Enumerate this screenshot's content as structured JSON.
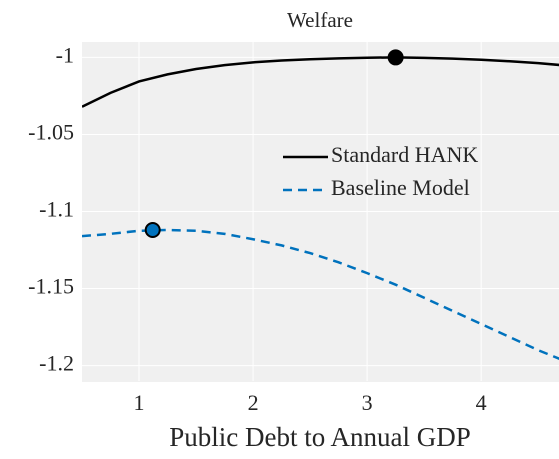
{
  "chart_data": {
    "type": "line",
    "title": "Welfare",
    "x_label": "Public Debt to Annual GDP",
    "x": [
      0.5,
      0.75,
      1,
      1.25,
      1.5,
      1.75,
      2,
      2.25,
      2.5,
      2.75,
      3,
      3.25,
      3.5,
      3.75,
      4,
      4.25,
      4.5,
      4.7
    ],
    "series": [
      {
        "name": "Standard HANK",
        "color": "#000000",
        "dash": "solid",
        "values": [
          -1.032,
          -1.023,
          -1.0156,
          -1.011,
          -1.0075,
          -1.005,
          -1.0032,
          -1.002,
          -1.0012,
          -1.0006,
          -1.0002,
          -1.0,
          -1.0003,
          -1.0008,
          -1.0015,
          -1.0025,
          -1.0037,
          -1.005
        ],
        "optimum": {
          "x": 3.25,
          "y": -1.0
        }
      },
      {
        "name": "Baseline Model",
        "color": "#0072BD",
        "dash": "dashed",
        "values": [
          -1.116,
          -1.1145,
          -1.1125,
          -1.112,
          -1.1125,
          -1.1145,
          -1.118,
          -1.122,
          -1.127,
          -1.133,
          -1.14,
          -1.1475,
          -1.156,
          -1.1645,
          -1.173,
          -1.1815,
          -1.19,
          -1.196
        ],
        "optimum": {
          "x": 1.12,
          "y": -1.112
        }
      }
    ],
    "xlim": [
      0.5,
      4.7
    ],
    "ylim": [
      -1.21,
      -0.99
    ],
    "xticks": [
      1,
      2,
      3,
      4
    ],
    "yticks": [
      -1,
      -1.05,
      -1.1,
      -1.15,
      -1.2
    ],
    "grid": true,
    "legend": "east"
  }
}
